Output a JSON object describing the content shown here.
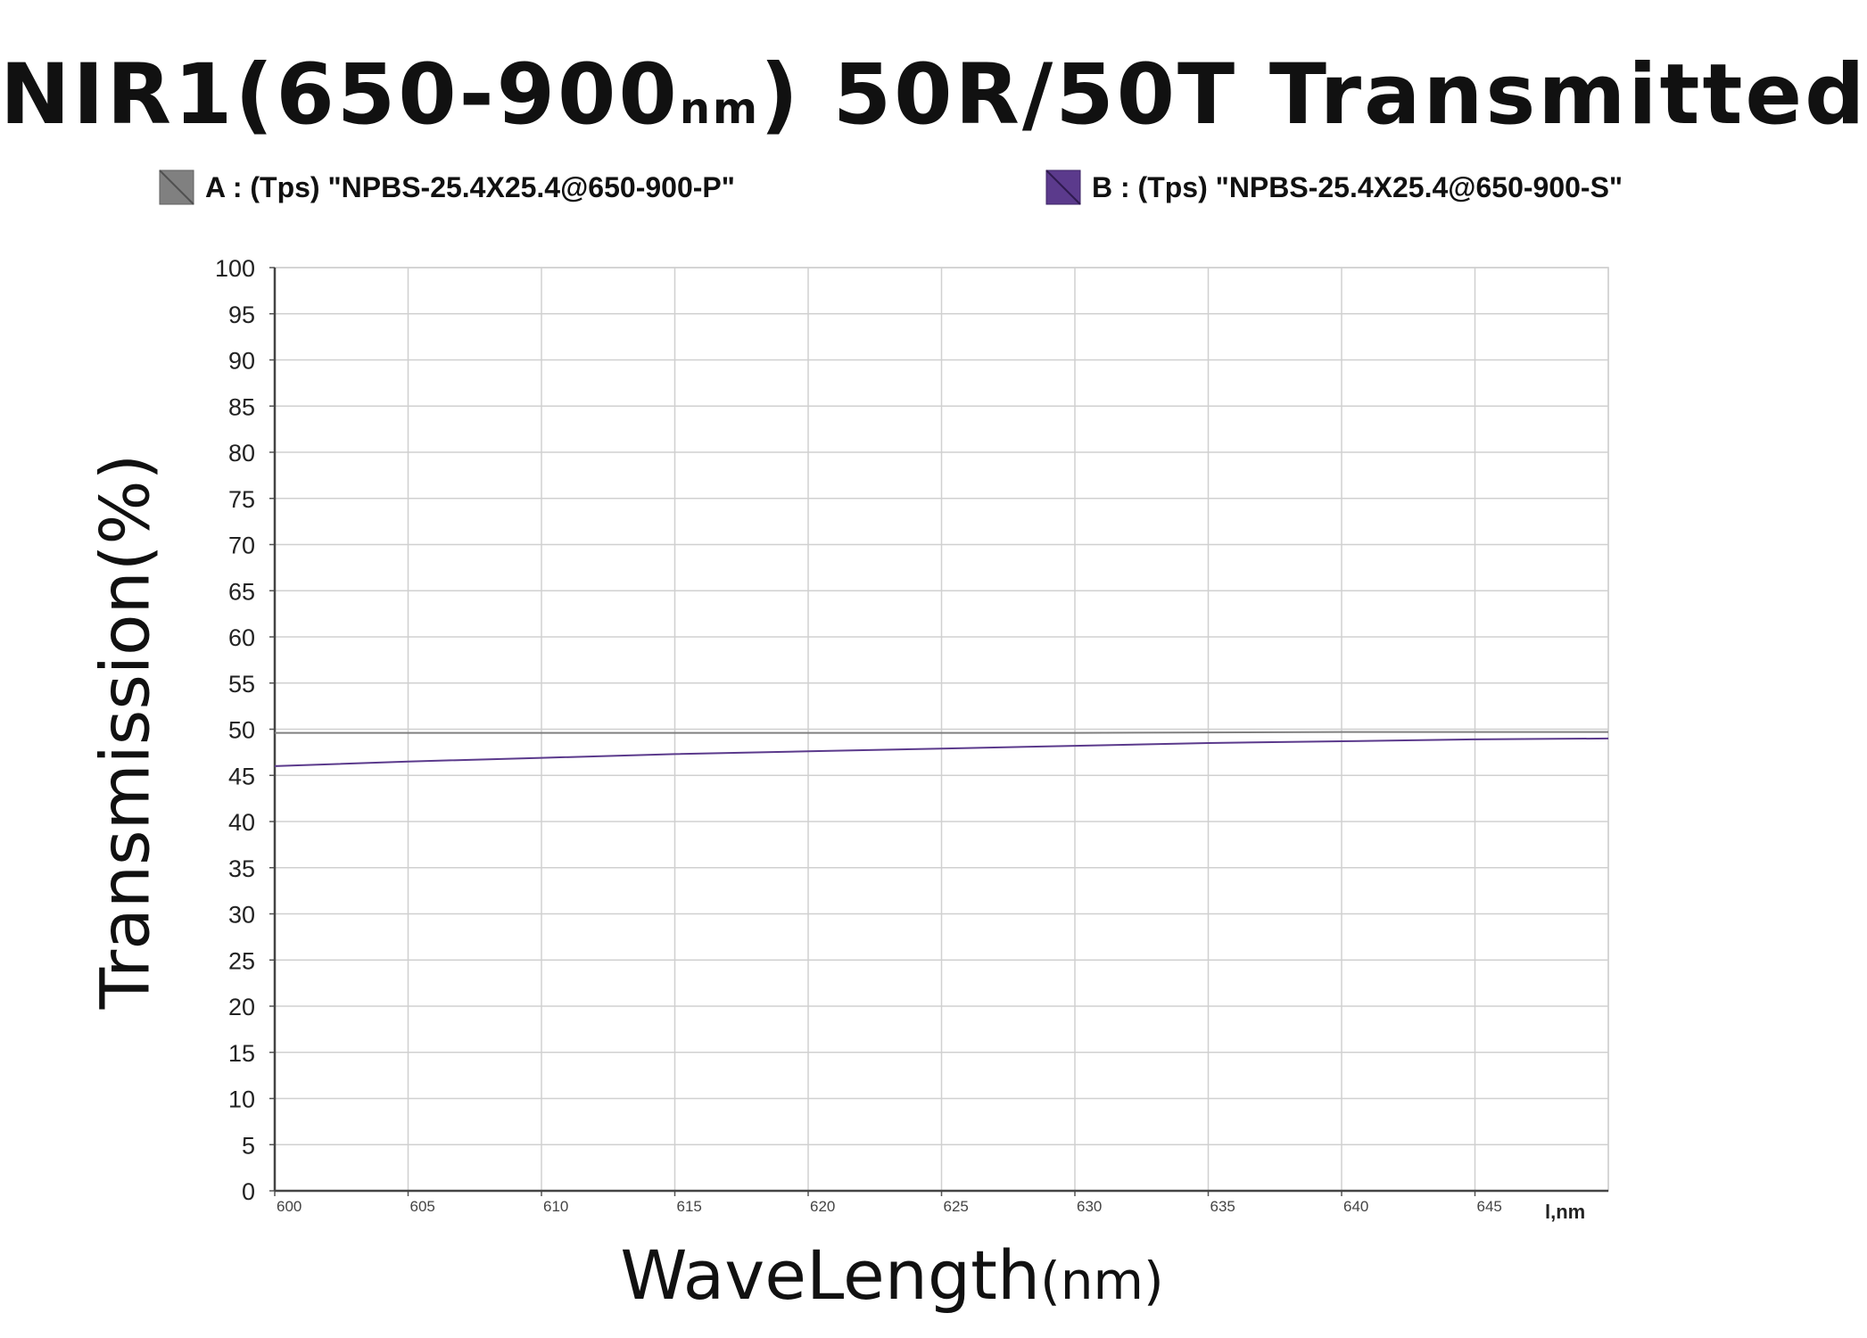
{
  "chart_data": {
    "type": "line",
    "title_main": "NIR1(650-900",
    "title_unit": "nm",
    "title_tail": ") 50R/50T Transmitted",
    "xlabel_main": "WaveLength",
    "xlabel_unit": "(nm)",
    "ylabel": "Transmission(%)",
    "x_axis_unit_label": "l,nm",
    "xlim": [
      600,
      650
    ],
    "ylim": [
      0,
      100
    ],
    "x_ticks": [
      600,
      605,
      610,
      615,
      620,
      625,
      630,
      635,
      640,
      645
    ],
    "y_ticks": [
      0,
      5,
      10,
      15,
      20,
      25,
      30,
      35,
      40,
      45,
      50,
      55,
      60,
      65,
      70,
      75,
      80,
      85,
      90,
      95,
      100
    ],
    "grid": true,
    "legend_position": "top",
    "series": [
      {
        "name": "A : (Tps) \"NPBS-25.4X25.4@650-900-P\"",
        "color": "#808080",
        "x": [
          600,
          610,
          620,
          630,
          640,
          650
        ],
        "y": [
          49.6,
          49.6,
          49.6,
          49.6,
          49.7,
          49.7
        ]
      },
      {
        "name": "B : (Tps) \"NPBS-25.4X25.4@650-900-S\"",
        "color": "#5b3a8c",
        "x": [
          600,
          605,
          610,
          615,
          620,
          625,
          630,
          635,
          640,
          645,
          650
        ],
        "y": [
          46.0,
          46.5,
          46.9,
          47.3,
          47.6,
          47.9,
          48.2,
          48.5,
          48.7,
          48.9,
          49.0
        ]
      }
    ]
  }
}
